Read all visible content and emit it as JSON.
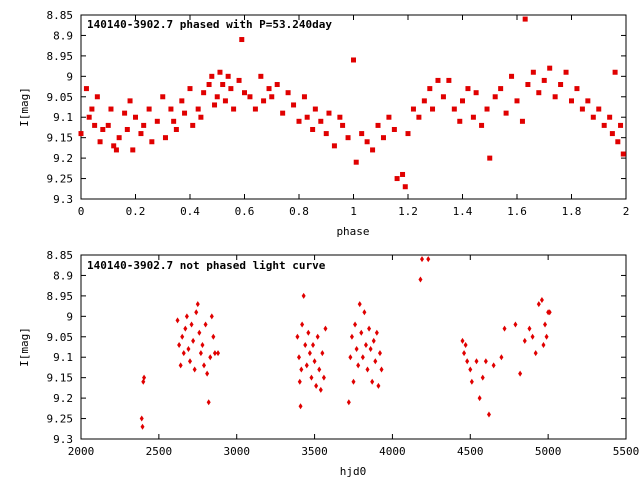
{
  "chart_data": [
    {
      "type": "scatter",
      "title": "140140-3902.7 phased with P=53.240day",
      "xlabel": "phase",
      "ylabel": "I[mag]",
      "xlim": [
        0,
        2
      ],
      "ylim": [
        9.3,
        8.85
      ],
      "y_inverted": true,
      "grid": false,
      "marker_color": "#e00000",
      "x_ticks": [
        "0",
        "0.2",
        "0.4",
        "0.6",
        "0.8",
        "1",
        "1.2",
        "1.4",
        "1.6",
        "1.8",
        "2"
      ],
      "y_ticks": [
        "8.85",
        "8.9",
        "8.95",
        "9",
        "9.05",
        "9.1",
        "9.15",
        "9.2",
        "9.25",
        "9.3"
      ],
      "points": [
        [
          0.0,
          9.14
        ],
        [
          0.02,
          9.03
        ],
        [
          0.03,
          9.1
        ],
        [
          0.04,
          9.08
        ],
        [
          0.05,
          9.12
        ],
        [
          0.06,
          9.05
        ],
        [
          0.07,
          9.16
        ],
        [
          0.08,
          9.13
        ],
        [
          0.1,
          9.12
        ],
        [
          0.11,
          9.08
        ],
        [
          0.12,
          9.17
        ],
        [
          0.13,
          9.18
        ],
        [
          0.14,
          9.15
        ],
        [
          0.16,
          9.09
        ],
        [
          0.17,
          9.13
        ],
        [
          0.18,
          9.06
        ],
        [
          0.19,
          9.18
        ],
        [
          0.2,
          9.1
        ],
        [
          0.22,
          9.14
        ],
        [
          0.23,
          9.12
        ],
        [
          0.25,
          9.08
        ],
        [
          0.26,
          9.16
        ],
        [
          0.28,
          9.11
        ],
        [
          0.3,
          9.05
        ],
        [
          0.31,
          9.15
        ],
        [
          0.33,
          9.08
        ],
        [
          0.34,
          9.11
        ],
        [
          0.35,
          9.13
        ],
        [
          0.37,
          9.06
        ],
        [
          0.38,
          9.09
        ],
        [
          0.4,
          9.03
        ],
        [
          0.41,
          9.12
        ],
        [
          0.43,
          9.08
        ],
        [
          0.44,
          9.1
        ],
        [
          0.45,
          9.04
        ],
        [
          0.47,
          9.02
        ],
        [
          0.48,
          9.0
        ],
        [
          0.49,
          9.07
        ],
        [
          0.5,
          9.05
        ],
        [
          0.51,
          8.99
        ],
        [
          0.52,
          9.02
        ],
        [
          0.53,
          9.06
        ],
        [
          0.54,
          9.0
        ],
        [
          0.55,
          9.03
        ],
        [
          0.56,
          9.08
        ],
        [
          0.58,
          9.01
        ],
        [
          0.59,
          8.91
        ],
        [
          0.6,
          9.04
        ],
        [
          0.62,
          9.05
        ],
        [
          0.64,
          9.08
        ],
        [
          0.66,
          9.0
        ],
        [
          0.67,
          9.06
        ],
        [
          0.69,
          9.03
        ],
        [
          0.7,
          9.05
        ],
        [
          0.72,
          9.02
        ],
        [
          0.74,
          9.09
        ],
        [
          0.76,
          9.04
        ],
        [
          0.78,
          9.07
        ],
        [
          0.8,
          9.11
        ],
        [
          0.82,
          9.05
        ],
        [
          0.83,
          9.1
        ],
        [
          0.85,
          9.13
        ],
        [
          0.86,
          9.08
        ],
        [
          0.88,
          9.11
        ],
        [
          0.9,
          9.14
        ],
        [
          0.91,
          9.09
        ],
        [
          0.93,
          9.17
        ],
        [
          0.95,
          9.1
        ],
        [
          0.96,
          9.12
        ],
        [
          0.98,
          9.15
        ],
        [
          1.0,
          8.96
        ],
        [
          1.01,
          9.21
        ],
        [
          1.03,
          9.14
        ],
        [
          1.05,
          9.16
        ],
        [
          1.07,
          9.18
        ],
        [
          1.09,
          9.12
        ],
        [
          1.11,
          9.15
        ],
        [
          1.13,
          9.1
        ],
        [
          1.15,
          9.13
        ],
        [
          1.16,
          9.25
        ],
        [
          1.18,
          9.24
        ],
        [
          1.19,
          9.27
        ],
        [
          1.2,
          9.14
        ],
        [
          1.22,
          9.08
        ],
        [
          1.24,
          9.1
        ],
        [
          1.26,
          9.06
        ],
        [
          1.28,
          9.03
        ],
        [
          1.29,
          9.08
        ],
        [
          1.31,
          9.01
        ],
        [
          1.33,
          9.05
        ],
        [
          1.35,
          9.01
        ],
        [
          1.37,
          9.08
        ],
        [
          1.39,
          9.11
        ],
        [
          1.4,
          9.06
        ],
        [
          1.42,
          9.03
        ],
        [
          1.44,
          9.1
        ],
        [
          1.45,
          9.04
        ],
        [
          1.47,
          9.12
        ],
        [
          1.49,
          9.08
        ],
        [
          1.5,
          9.2
        ],
        [
          1.52,
          9.05
        ],
        [
          1.54,
          9.03
        ],
        [
          1.56,
          9.09
        ],
        [
          1.58,
          9.0
        ],
        [
          1.6,
          9.06
        ],
        [
          1.62,
          9.11
        ],
        [
          1.63,
          8.86
        ],
        [
          1.64,
          9.02
        ],
        [
          1.66,
          8.99
        ],
        [
          1.68,
          9.04
        ],
        [
          1.7,
          9.01
        ],
        [
          1.72,
          8.98
        ],
        [
          1.74,
          9.05
        ],
        [
          1.76,
          9.02
        ],
        [
          1.78,
          8.99
        ],
        [
          1.8,
          9.06
        ],
        [
          1.82,
          9.03
        ],
        [
          1.84,
          9.08
        ],
        [
          1.86,
          9.06
        ],
        [
          1.88,
          9.1
        ],
        [
          1.9,
          9.08
        ],
        [
          1.92,
          9.12
        ],
        [
          1.94,
          9.1
        ],
        [
          1.95,
          9.14
        ],
        [
          1.96,
          8.99
        ],
        [
          1.97,
          9.16
        ],
        [
          1.98,
          9.12
        ],
        [
          1.99,
          9.19
        ]
      ]
    },
    {
      "type": "scatter",
      "title": "140140-3902.7 not phased light curve",
      "xlabel": "hjd0",
      "ylabel": "I[mag]",
      "xlim": [
        2000,
        5500
      ],
      "ylim": [
        9.3,
        8.85
      ],
      "y_inverted": true,
      "grid": false,
      "marker_color": "#e00000",
      "x_ticks": [
        "2000",
        "2500",
        "3000",
        "3500",
        "4000",
        "4500",
        "5000",
        "5500"
      ],
      "y_ticks": [
        "8.85",
        "8.9",
        "8.95",
        "9",
        "9.05",
        "9.1",
        "9.15",
        "9.2",
        "9.25",
        "9.3"
      ],
      "points": [
        [
          2390,
          9.25
        ],
        [
          2395,
          9.27
        ],
        [
          2400,
          9.16
        ],
        [
          2405,
          9.15
        ],
        [
          2620,
          9.01
        ],
        [
          2630,
          9.07
        ],
        [
          2640,
          9.12
        ],
        [
          2650,
          9.05
        ],
        [
          2660,
          9.09
        ],
        [
          2670,
          9.03
        ],
        [
          2680,
          9.0
        ],
        [
          2690,
          9.08
        ],
        [
          2700,
          9.11
        ],
        [
          2710,
          9.02
        ],
        [
          2720,
          9.06
        ],
        [
          2730,
          9.13
        ],
        [
          2740,
          8.99
        ],
        [
          2750,
          8.97
        ],
        [
          2760,
          9.04
        ],
        [
          2770,
          9.09
        ],
        [
          2780,
          9.07
        ],
        [
          2790,
          9.12
        ],
        [
          2800,
          9.02
        ],
        [
          2810,
          9.14
        ],
        [
          2820,
          9.21
        ],
        [
          2830,
          9.1
        ],
        [
          2840,
          9.0
        ],
        [
          2850,
          9.05
        ],
        [
          2860,
          9.09
        ],
        [
          2880,
          9.09
        ],
        [
          3390,
          9.05
        ],
        [
          3400,
          9.1
        ],
        [
          3405,
          9.16
        ],
        [
          3410,
          9.22
        ],
        [
          3415,
          9.13
        ],
        [
          3420,
          9.02
        ],
        [
          3430,
          8.95
        ],
        [
          3440,
          9.07
        ],
        [
          3450,
          9.12
        ],
        [
          3460,
          9.04
        ],
        [
          3470,
          9.09
        ],
        [
          3480,
          9.15
        ],
        [
          3490,
          9.07
        ],
        [
          3500,
          9.11
        ],
        [
          3510,
          9.17
        ],
        [
          3520,
          9.05
        ],
        [
          3530,
          9.13
        ],
        [
          3540,
          9.18
        ],
        [
          3550,
          9.09
        ],
        [
          3560,
          9.15
        ],
        [
          3570,
          9.03
        ],
        [
          3720,
          9.21
        ],
        [
          3730,
          9.1
        ],
        [
          3740,
          9.05
        ],
        [
          3750,
          9.16
        ],
        [
          3760,
          9.02
        ],
        [
          3770,
          9.08
        ],
        [
          3780,
          9.12
        ],
        [
          3790,
          8.97
        ],
        [
          3800,
          9.04
        ],
        [
          3810,
          9.1
        ],
        [
          3820,
          8.99
        ],
        [
          3830,
          9.07
        ],
        [
          3840,
          9.13
        ],
        [
          3850,
          9.03
        ],
        [
          3860,
          9.08
        ],
        [
          3870,
          9.16
        ],
        [
          3880,
          9.06
        ],
        [
          3890,
          9.11
        ],
        [
          3900,
          9.04
        ],
        [
          3910,
          9.17
        ],
        [
          3920,
          9.09
        ],
        [
          3930,
          9.13
        ],
        [
          4180,
          8.91
        ],
        [
          4190,
          8.86
        ],
        [
          4230,
          8.86
        ],
        [
          4450,
          9.06
        ],
        [
          4460,
          9.09
        ],
        [
          4470,
          9.07
        ],
        [
          4480,
          9.11
        ],
        [
          4500,
          9.13
        ],
        [
          4510,
          9.16
        ],
        [
          4540,
          9.11
        ],
        [
          4560,
          9.2
        ],
        [
          4580,
          9.15
        ],
        [
          4600,
          9.11
        ],
        [
          4620,
          9.24
        ],
        [
          4650,
          9.12
        ],
        [
          4700,
          9.1
        ],
        [
          4720,
          9.03
        ],
        [
          4790,
          9.02
        ],
        [
          4820,
          9.14
        ],
        [
          4850,
          9.06
        ],
        [
          4880,
          9.03
        ],
        [
          4900,
          9.05
        ],
        [
          4920,
          9.09
        ],
        [
          4940,
          8.97
        ],
        [
          4960,
          8.96
        ],
        [
          4970,
          9.07
        ],
        [
          4980,
          9.02
        ],
        [
          4990,
          9.05
        ],
        [
          5000,
          8.99
        ],
        [
          5010,
          8.99
        ]
      ]
    }
  ]
}
